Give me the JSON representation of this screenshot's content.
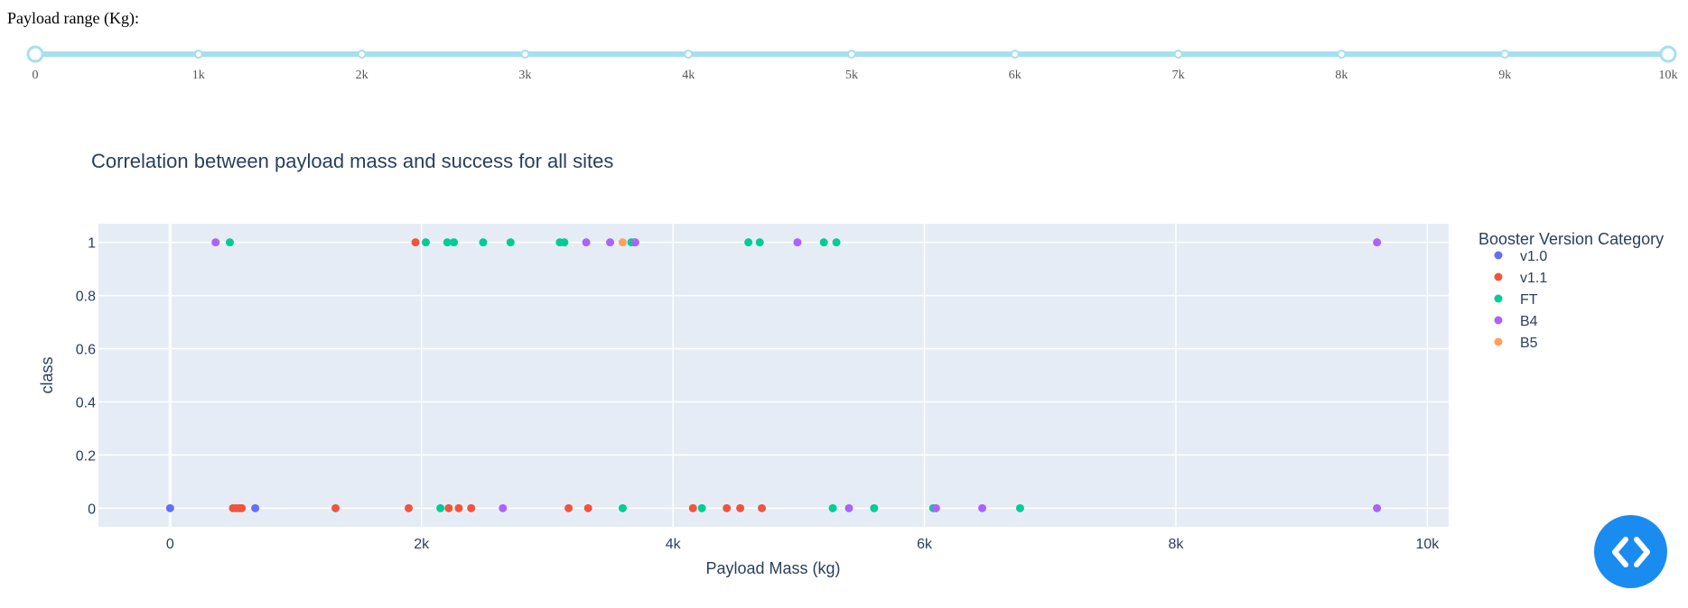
{
  "slider": {
    "label": "Payload range (Kg):",
    "min": 0,
    "max": 10000,
    "value": [
      0,
      10000
    ],
    "marks": [
      "0",
      "1k",
      "2k",
      "3k",
      "4k",
      "5k",
      "6k",
      "7k",
      "8k",
      "9k",
      "10k"
    ],
    "track_color": "#a6dff2",
    "handle_color": "#a6dff2"
  },
  "chart_data": {
    "type": "scatter",
    "title": "Correlation between payload mass and success for all sites",
    "xlabel": "Payload Mass (kg)",
    "ylabel": "class",
    "xlim": [
      -570,
      10170
    ],
    "ylim": [
      -0.07,
      1.07
    ],
    "xticks": [
      0,
      2000,
      4000,
      6000,
      8000,
      10000
    ],
    "xtick_labels": [
      "0",
      "2k",
      "4k",
      "6k",
      "8k",
      "10k"
    ],
    "yticks": [
      0,
      0.2,
      0.4,
      0.6,
      0.8,
      1
    ],
    "ytick_labels": [
      "0",
      "0.2",
      "0.4",
      "0.6",
      "0.8",
      "1"
    ],
    "grid": true,
    "legend_title": "Booster Version Category",
    "legend_position": "right",
    "series": [
      {
        "name": "v1.0",
        "color": "#636efa",
        "x": [
          0,
          677
        ],
        "y": [
          0,
          0
        ]
      },
      {
        "name": "v1.1",
        "color": "#ef553b",
        "x": [
          1952,
          500,
          525,
          550,
          570,
          1316,
          1898,
          2216,
          2296,
          2395,
          3170,
          3325,
          4159,
          4428,
          4535,
          4707
        ],
        "y": [
          1,
          0,
          0,
          0,
          0,
          0,
          0,
          0,
          0,
          0,
          0,
          0,
          0,
          0,
          0,
          0
        ]
      },
      {
        "name": "FT",
        "color": "#00cc96",
        "x": [
          475,
          2034,
          2205,
          2257,
          2490,
          2708,
          3100,
          3136,
          3669,
          3696,
          4600,
          4690,
          5200,
          5300,
          2150,
          3600,
          4230,
          5271,
          5600,
          6070,
          6761
        ],
        "y": [
          1,
          1,
          1,
          1,
          1,
          1,
          1,
          1,
          1,
          1,
          1,
          1,
          1,
          1,
          0,
          0,
          0,
          0,
          0,
          0,
          0
        ]
      },
      {
        "name": "B4",
        "color": "#ab63fa",
        "x": [
          362,
          3310,
          3500,
          3700,
          4990,
          9600,
          2647,
          5400,
          6092,
          6460,
          9600
        ],
        "y": [
          1,
          1,
          1,
          1,
          1,
          1,
          0,
          0,
          0,
          0,
          0
        ]
      },
      {
        "name": "B5",
        "color": "#ffa15a",
        "x": [
          3600
        ],
        "y": [
          1
        ]
      }
    ]
  },
  "colors": {
    "plot_bg": "#e5ecf6",
    "grid": "#ffffff",
    "text": "#2a3f5f",
    "code_button": "#1a8cf0"
  },
  "icons": {
    "code_button": "code-brackets-icon"
  }
}
